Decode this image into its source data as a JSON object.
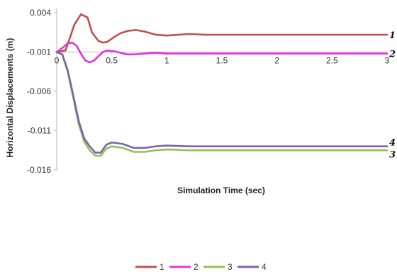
{
  "chart_data": {
    "type": "line",
    "xlabel": "Simulation Time (sec)",
    "ylabel": "Horizontal Displacements (m)",
    "xlim": [
      0,
      3
    ],
    "ylim": [
      -0.016,
      0.004
    ],
    "x_ticks": [
      "0",
      "0.5",
      "1",
      "1.5",
      "2",
      "2.5",
      "3"
    ],
    "y_ticks": [
      "0.004",
      "-0.001",
      "-0.006",
      "-0.011",
      "-0.016"
    ],
    "x_axis_at_y": -0.001,
    "grid": false,
    "legend_position": "bottom",
    "series": [
      {
        "name": "1",
        "end_label": "1",
        "color": "#c0504d",
        "x": [
          0,
          0.08,
          0.12,
          0.16,
          0.22,
          0.28,
          0.32,
          0.38,
          0.42,
          0.46,
          0.52,
          0.58,
          0.65,
          0.72,
          0.8,
          0.9,
          1.0,
          1.1,
          1.2,
          1.35,
          1.5,
          1.7,
          2.0,
          2.5,
          3.0
        ],
        "y": [
          -0.001,
          -0.0008,
          0.0008,
          0.0025,
          0.0038,
          0.0034,
          0.0015,
          0.0004,
          0.0002,
          0.0003,
          0.0009,
          0.0014,
          0.0017,
          0.0018,
          0.0016,
          0.0012,
          0.0011,
          0.0012,
          0.0013,
          0.0012,
          0.0012,
          0.0012,
          0.0012,
          0.0012,
          0.0012
        ]
      },
      {
        "name": "2",
        "end_label": "2",
        "color": "#e234e2",
        "x": [
          0,
          0.06,
          0.1,
          0.14,
          0.18,
          0.22,
          0.26,
          0.3,
          0.34,
          0.38,
          0.42,
          0.46,
          0.52,
          0.58,
          0.64,
          0.7,
          0.8,
          0.9,
          1.0,
          1.2,
          1.5,
          2.0,
          2.5,
          3.0
        ],
        "y": [
          -0.001,
          -0.0004,
          0.0001,
          0.0002,
          -0.0002,
          -0.0012,
          -0.0021,
          -0.0023,
          -0.0021,
          -0.0015,
          -0.001,
          -0.0008,
          -0.0009,
          -0.0011,
          -0.0013,
          -0.0013,
          -0.0012,
          -0.0011,
          -0.0012,
          -0.0012,
          -0.0012,
          -0.0012,
          -0.0012,
          -0.0012
        ]
      },
      {
        "name": "3",
        "end_label": "3",
        "color": "#8ec353",
        "x": [
          0,
          0.05,
          0.1,
          0.15,
          0.2,
          0.25,
          0.3,
          0.35,
          0.4,
          0.45,
          0.5,
          0.6,
          0.7,
          0.8,
          0.9,
          1.0,
          1.2,
          1.5,
          2.0,
          2.5,
          3.0
        ],
        "y": [
          -0.001,
          -0.0013,
          -0.0035,
          -0.0068,
          -0.0102,
          -0.0124,
          -0.0135,
          -0.0142,
          -0.0142,
          -0.0133,
          -0.013,
          -0.0132,
          -0.0137,
          -0.0137,
          -0.0135,
          -0.0134,
          -0.0135,
          -0.0135,
          -0.0135,
          -0.0135,
          -0.0135
        ]
      },
      {
        "name": "4",
        "end_label": "4",
        "color": "#7f62a8",
        "x": [
          0,
          0.05,
          0.1,
          0.15,
          0.2,
          0.25,
          0.3,
          0.35,
          0.4,
          0.45,
          0.5,
          0.6,
          0.7,
          0.8,
          0.9,
          1.0,
          1.2,
          1.5,
          2.0,
          2.5,
          3.0
        ],
        "y": [
          -0.001,
          -0.0013,
          -0.0033,
          -0.0065,
          -0.0098,
          -0.012,
          -0.013,
          -0.0138,
          -0.0138,
          -0.0128,
          -0.0125,
          -0.0127,
          -0.0132,
          -0.0132,
          -0.013,
          -0.0129,
          -0.013,
          -0.013,
          -0.013,
          -0.013,
          -0.013
        ]
      }
    ]
  }
}
